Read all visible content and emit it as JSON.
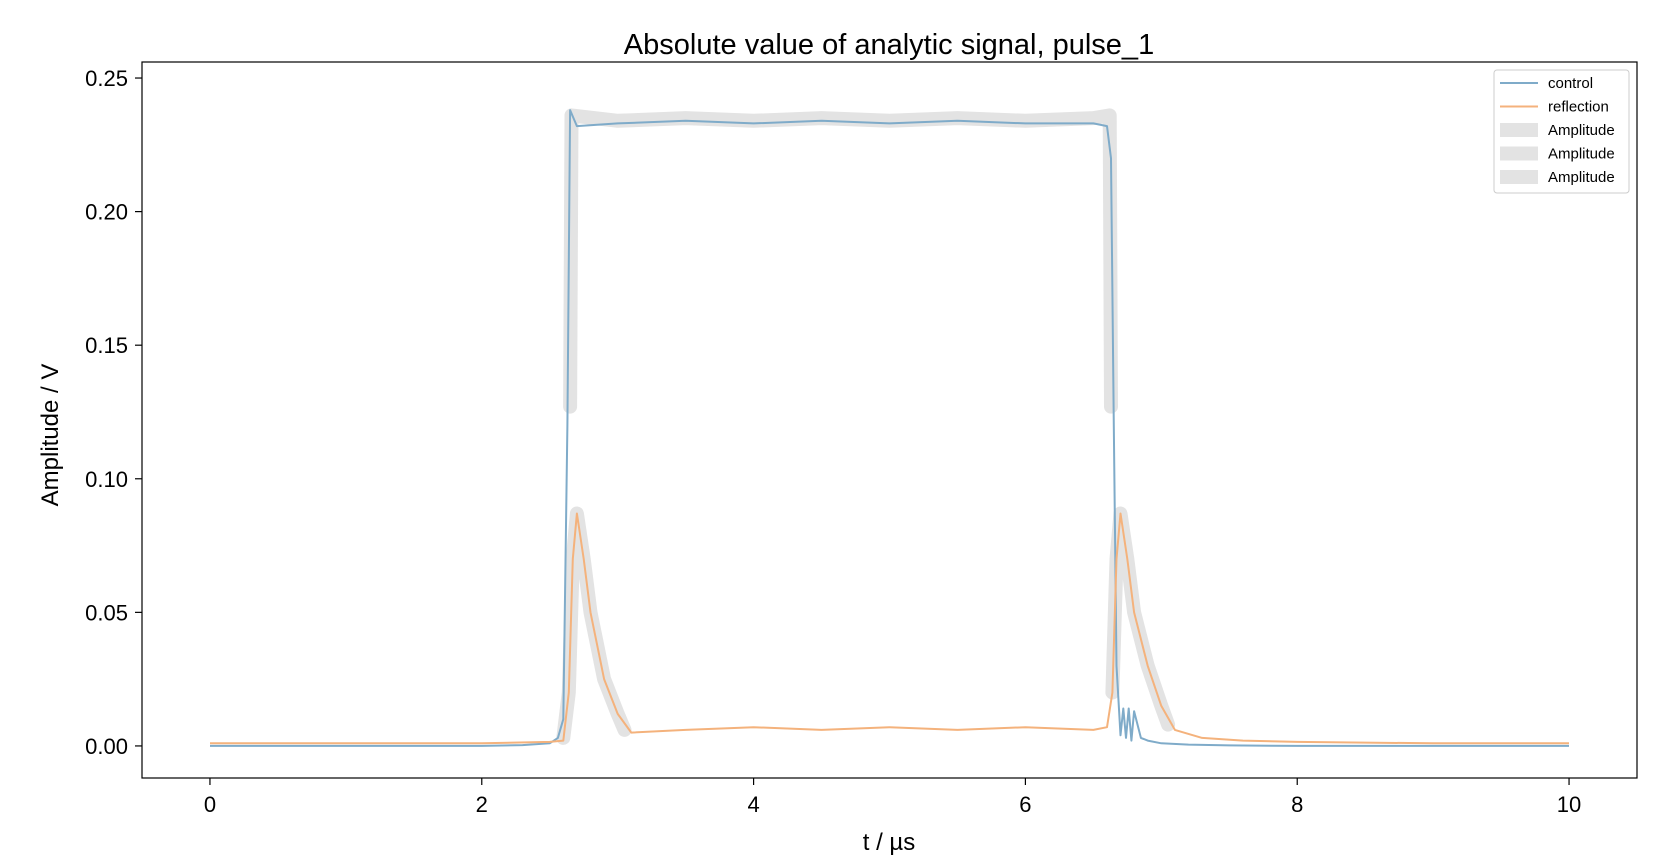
{
  "chart_data": {
    "type": "line",
    "title": "Absolute value of analytic signal, pulse_1",
    "xlabel": "t / µs",
    "ylabel": "Amplitude / V",
    "xlim": [
      -0.5,
      10.5
    ],
    "ylim": [
      -0.012,
      0.256
    ],
    "xticks": [
      0,
      2,
      4,
      6,
      8,
      10
    ],
    "xtick_labels": [
      "0",
      "2",
      "4",
      "6",
      "8",
      "10"
    ],
    "yticks": [
      0.0,
      0.05,
      0.1,
      0.15,
      0.2,
      0.25
    ],
    "ytick_labels": [
      "0.00",
      "0.05",
      "0.10",
      "0.15",
      "0.20",
      "0.25"
    ],
    "grid": false,
    "legend_position": "top-right",
    "legend": [
      "control",
      "reflection",
      "Amplitude",
      "Amplitude",
      "Amplitude"
    ],
    "series": [
      {
        "name": "control",
        "color": "#7fabc9",
        "x": [
          0,
          2.0,
          2.3,
          2.5,
          2.56,
          2.6,
          2.63,
          2.65,
          2.7,
          3.0,
          3.5,
          4.0,
          4.5,
          5.0,
          5.5,
          6.0,
          6.5,
          6.6,
          6.63,
          6.65,
          6.67,
          6.7,
          6.72,
          6.74,
          6.76,
          6.78,
          6.8,
          6.85,
          6.9,
          7.0,
          7.2,
          7.5,
          8.0,
          10.0
        ],
        "y": [
          0.0,
          0.0,
          0.0003,
          0.001,
          0.003,
          0.01,
          0.12,
          0.238,
          0.232,
          0.233,
          0.234,
          0.233,
          0.234,
          0.233,
          0.234,
          0.233,
          0.233,
          0.232,
          0.22,
          0.12,
          0.03,
          0.004,
          0.014,
          0.003,
          0.014,
          0.002,
          0.013,
          0.003,
          0.002,
          0.001,
          0.0005,
          0.0002,
          0.0,
          0.0
        ]
      },
      {
        "name": "reflection",
        "color": "#f4b27c",
        "x": [
          0,
          2.0,
          2.5,
          2.6,
          2.64,
          2.67,
          2.7,
          2.75,
          2.8,
          2.9,
          3.0,
          3.1,
          3.5,
          4.0,
          4.5,
          5.0,
          5.5,
          6.0,
          6.5,
          6.6,
          6.64,
          6.67,
          6.7,
          6.75,
          6.8,
          6.9,
          7.0,
          7.1,
          7.3,
          7.6,
          8.0,
          9.0,
          10.0
        ],
        "y": [
          0.001,
          0.001,
          0.0015,
          0.002,
          0.02,
          0.07,
          0.087,
          0.07,
          0.05,
          0.025,
          0.012,
          0.005,
          0.006,
          0.007,
          0.006,
          0.007,
          0.006,
          0.007,
          0.006,
          0.007,
          0.02,
          0.07,
          0.087,
          0.07,
          0.05,
          0.03,
          0.015,
          0.006,
          0.003,
          0.002,
          0.0015,
          0.001,
          0.001
        ]
      }
    ],
    "highlights": [
      {
        "name": "Amplitude",
        "color": "#e3e3e3",
        "x": [
          2.65,
          2.66,
          3.0,
          3.5,
          4.0,
          4.5,
          5.0,
          5.5,
          6.0,
          6.5,
          6.62,
          6.63
        ],
        "y": [
          0.127,
          0.236,
          0.234,
          0.235,
          0.234,
          0.235,
          0.234,
          0.235,
          0.234,
          0.235,
          0.236,
          0.127
        ]
      },
      {
        "name": "Amplitude",
        "color": "#e3e3e3",
        "x": [
          2.6,
          2.64,
          2.67,
          2.7,
          2.75,
          2.8,
          2.9,
          3.0,
          3.05
        ],
        "y": [
          0.003,
          0.02,
          0.07,
          0.087,
          0.07,
          0.05,
          0.025,
          0.012,
          0.006
        ]
      },
      {
        "name": "Amplitude",
        "color": "#e3e3e3",
        "x": [
          6.64,
          6.67,
          6.7,
          6.75,
          6.8,
          6.9,
          7.0,
          7.05
        ],
        "y": [
          0.02,
          0.07,
          0.087,
          0.07,
          0.05,
          0.03,
          0.015,
          0.008
        ]
      }
    ]
  }
}
